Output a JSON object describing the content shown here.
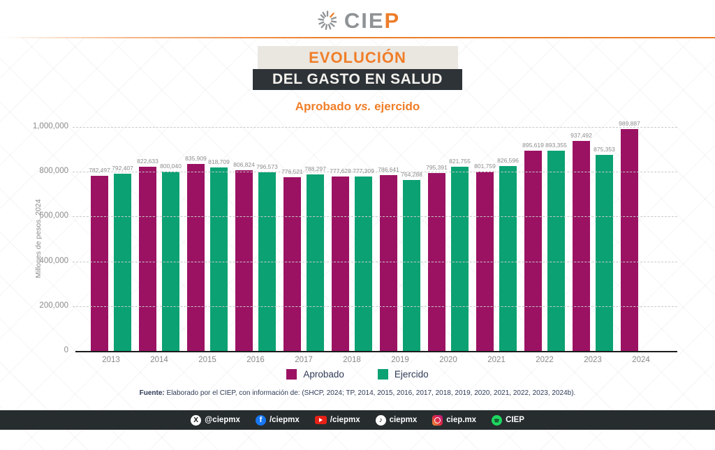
{
  "header": {
    "logo_gray": "CIE",
    "logo_orange": "P"
  },
  "title": {
    "line1": "EVOLUCIÓN",
    "line2": "DEL GASTO EN SALUD",
    "subtitle_prefix": "Aprobado ",
    "subtitle_vs": "vs.",
    "subtitle_suffix": " ejercido"
  },
  "chart_data": {
    "type": "bar",
    "title": "Evolución del gasto en salud: Aprobado vs. ejercido",
    "categories": [
      "2013",
      "2014",
      "2015",
      "2016",
      "2017",
      "2018",
      "2019",
      "2020",
      "2021",
      "2022",
      "2023",
      "2024"
    ],
    "series": [
      {
        "name": "Aprobado",
        "color": "#9B1263",
        "values": [
          782497,
          822633,
          835909,
          806824,
          776521,
          777628,
          786641,
          795391,
          801759,
          895619,
          937492,
          989887
        ]
      },
      {
        "name": "Ejercido",
        "color": "#0BA173",
        "values": [
          792407,
          800040,
          818709,
          796573,
          788297,
          777309,
          764288,
          821755,
          826596,
          893355,
          875353,
          null
        ]
      }
    ],
    "ylabel": "Millones de pesos, 2024",
    "ylim": [
      0,
      1000000
    ],
    "yticks": [
      {
        "value": 0,
        "label": "0"
      },
      {
        "value": 200000,
        "label": "200,000"
      },
      {
        "value": 400000,
        "label": "400,000"
      },
      {
        "value": 600000,
        "label": "600,000"
      },
      {
        "value": 800000,
        "label": "800,000"
      },
      {
        "value": 1000000,
        "label": "1,000,000"
      }
    ],
    "grid": "horizontal-dashed",
    "legend_position": "bottom-center",
    "bar_value_labels": true
  },
  "legend": {
    "items": [
      {
        "label": "Aprobado",
        "color": "#9B1263"
      },
      {
        "label": "Ejercido",
        "color": "#0BA173"
      }
    ]
  },
  "footer": {
    "source_bold": "Fuente:",
    "source_rest": " Elaborado por el CIEP, con información de: (SHCP, 2024; TP, 2014, 2015, 2016, 2017, 2018, 2019, 2020, 2021, 2022, 2023, 2024b)."
  },
  "social_bar": {
    "items": [
      {
        "icon": "x-icon",
        "label": "@ciepmx"
      },
      {
        "icon": "facebook-icon",
        "label": "/ciepmx"
      },
      {
        "icon": "youtube-icon",
        "label": "/ciepmx"
      },
      {
        "icon": "tiktok-icon",
        "label": "ciepmx"
      },
      {
        "icon": "instagram-icon",
        "label": "ciep.mx"
      },
      {
        "icon": "spotify-icon",
        "label": "CIEP"
      }
    ]
  },
  "colors": {
    "accent_orange": "#ED7D2B",
    "bar_aprobado": "#9B1263",
    "bar_ejercido": "#0BA173",
    "dark_band": "#2E3338",
    "light_band": "#EAE7E1",
    "navy_text": "#2E3A56",
    "social_bar_bg": "#272D2F"
  }
}
